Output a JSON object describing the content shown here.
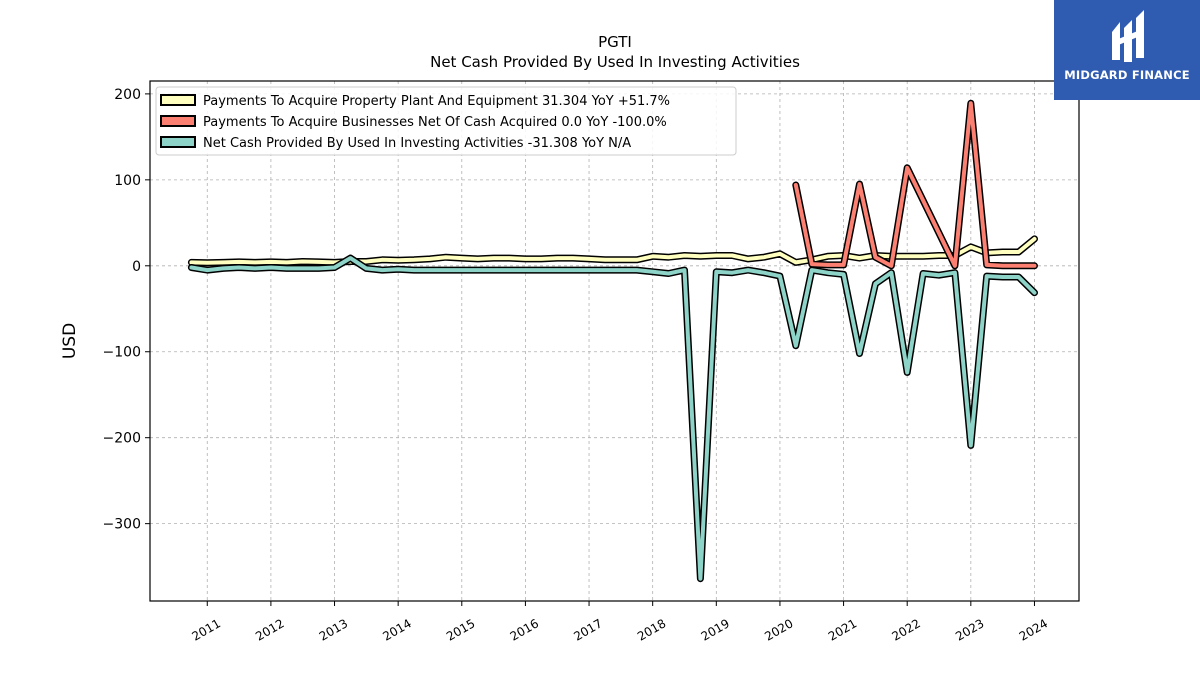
{
  "brand": {
    "name": "MIDGARD FINANCE",
    "bg_color": "#2f5bb0"
  },
  "chart_data": {
    "type": "line",
    "title": "PGTI",
    "subtitle": "Net Cash Provided By Used In Investing Activities",
    "xlabel": "",
    "ylabel": "USD",
    "xlim": [
      2010.1,
      2024.7
    ],
    "ylim": [
      -390,
      215
    ],
    "x_ticks": [
      2011,
      2012,
      2013,
      2014,
      2015,
      2016,
      2017,
      2018,
      2019,
      2020,
      2021,
      2022,
      2023,
      2024
    ],
    "y_ticks": [
      200,
      100,
      0,
      -100,
      -200,
      -300
    ],
    "y_tick_labels": [
      "200",
      "100",
      "0",
      "−100",
      "−200",
      "−300"
    ],
    "grid": true,
    "legend_position": "top-left",
    "series": [
      {
        "name": "Payments To Acquire Property Plant And Equipment  31.304 YoY +51.7%",
        "color": "#ffffbf",
        "points": [
          [
            2010.75,
            4
          ],
          [
            2011.0,
            3.5
          ],
          [
            2011.25,
            4
          ],
          [
            2011.5,
            4.5
          ],
          [
            2011.75,
            4
          ],
          [
            2012.0,
            4.5
          ],
          [
            2012.25,
            4
          ],
          [
            2012.5,
            5
          ],
          [
            2012.75,
            4.5
          ],
          [
            2013.0,
            4
          ],
          [
            2013.25,
            5
          ],
          [
            2013.5,
            5
          ],
          [
            2013.75,
            7
          ],
          [
            2014.0,
            6.5
          ],
          [
            2014.25,
            7
          ],
          [
            2014.5,
            8
          ],
          [
            2014.75,
            10
          ],
          [
            2015.0,
            9
          ],
          [
            2015.25,
            8
          ],
          [
            2015.5,
            9
          ],
          [
            2015.75,
            9
          ],
          [
            2016.0,
            8
          ],
          [
            2016.25,
            8
          ],
          [
            2016.5,
            9
          ],
          [
            2016.75,
            9
          ],
          [
            2017.0,
            8
          ],
          [
            2017.25,
            7
          ],
          [
            2017.5,
            7
          ],
          [
            2017.75,
            7
          ],
          [
            2018.0,
            11
          ],
          [
            2018.25,
            10
          ],
          [
            2018.5,
            12
          ],
          [
            2018.75,
            11
          ],
          [
            2019.0,
            12
          ],
          [
            2019.25,
            12
          ],
          [
            2019.5,
            8
          ],
          [
            2019.75,
            10
          ],
          [
            2020.0,
            14
          ],
          [
            2020.25,
            4
          ],
          [
            2020.5,
            7
          ],
          [
            2020.75,
            11
          ],
          [
            2021.0,
            12
          ],
          [
            2021.25,
            9
          ],
          [
            2021.5,
            12
          ],
          [
            2021.75,
            11
          ],
          [
            2022.0,
            11
          ],
          [
            2022.25,
            11
          ],
          [
            2022.5,
            12
          ],
          [
            2022.75,
            12
          ],
          [
            2023.0,
            22
          ],
          [
            2023.25,
            15
          ],
          [
            2023.5,
            16
          ],
          [
            2023.75,
            16
          ],
          [
            2024.0,
            31.304
          ]
        ]
      },
      {
        "name": "Payments To Acquire Businesses Net Of Cash Acquired  0.0 YoY -100.0%",
        "color": "#fb8072",
        "points": [
          [
            2020.25,
            94
          ],
          [
            2020.5,
            2
          ],
          [
            2020.75,
            1
          ],
          [
            2021.0,
            1
          ],
          [
            2021.25,
            95
          ],
          [
            2021.5,
            10
          ],
          [
            2021.75,
            0
          ],
          [
            2022.0,
            114
          ],
          [
            2022.75,
            0
          ],
          [
            2023.0,
            189
          ],
          [
            2023.25,
            1
          ],
          [
            2023.5,
            0
          ],
          [
            2023.75,
            0
          ],
          [
            2024.0,
            0
          ]
        ]
      },
      {
        "name": "Net Cash Provided By Used In Investing Activities  -31.308 YoY N/A",
        "color": "#8dd3c7",
        "points": [
          [
            2010.75,
            -2
          ],
          [
            2011.0,
            -5
          ],
          [
            2011.25,
            -3
          ],
          [
            2011.5,
            -2
          ],
          [
            2011.75,
            -3
          ],
          [
            2012.0,
            -2
          ],
          [
            2012.25,
            -3
          ],
          [
            2012.5,
            -3
          ],
          [
            2012.75,
            -3
          ],
          [
            2013.0,
            -2
          ],
          [
            2013.25,
            9
          ],
          [
            2013.5,
            -3
          ],
          [
            2013.75,
            -5
          ],
          [
            2014.0,
            -4
          ],
          [
            2014.25,
            -5
          ],
          [
            2014.5,
            -5
          ],
          [
            2014.75,
            -5
          ],
          [
            2015.0,
            -5
          ],
          [
            2015.25,
            -5
          ],
          [
            2015.5,
            -5
          ],
          [
            2015.75,
            -5
          ],
          [
            2016.0,
            -5
          ],
          [
            2016.25,
            -5
          ],
          [
            2016.5,
            -5
          ],
          [
            2016.75,
            -5
          ],
          [
            2017.0,
            -5
          ],
          [
            2017.25,
            -5
          ],
          [
            2017.5,
            -5
          ],
          [
            2017.75,
            -5
          ],
          [
            2018.0,
            -7
          ],
          [
            2018.25,
            -9
          ],
          [
            2018.5,
            -5
          ],
          [
            2018.75,
            -364
          ],
          [
            2019.0,
            -7
          ],
          [
            2019.25,
            -8
          ],
          [
            2019.5,
            -5
          ],
          [
            2019.75,
            -8
          ],
          [
            2020.0,
            -12
          ],
          [
            2020.25,
            -93
          ],
          [
            2020.5,
            -5
          ],
          [
            2020.75,
            -8
          ],
          [
            2021.0,
            -10
          ],
          [
            2021.25,
            -102
          ],
          [
            2021.5,
            -21
          ],
          [
            2021.75,
            -8
          ],
          [
            2022.0,
            -124
          ],
          [
            2022.25,
            -9
          ],
          [
            2022.5,
            -11
          ],
          [
            2022.75,
            -8
          ],
          [
            2023.0,
            -209
          ],
          [
            2023.25,
            -12
          ],
          [
            2023.5,
            -13
          ],
          [
            2023.75,
            -13
          ],
          [
            2024.0,
            -31.308
          ]
        ]
      }
    ]
  }
}
